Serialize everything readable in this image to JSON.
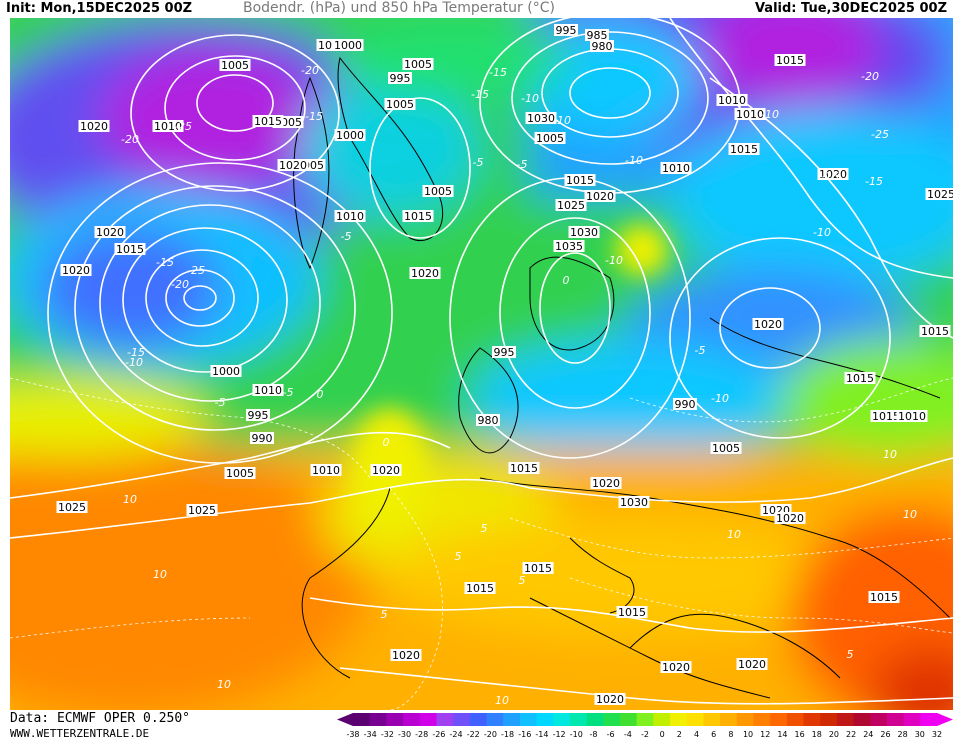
{
  "header": {
    "init": "Init: Mon,15DEC2025 00Z",
    "title": "Bodendr. (hPa) und 850 hPa Temperatur (°C)",
    "valid": "Valid: Tue,30DEC2025 00Z"
  },
  "footer": {
    "data_source": "Data: ECMWF OPER 0.250°",
    "website": "WWW.WETTERZENTRALE.DE"
  },
  "colorbar": {
    "ticks": [
      "-38",
      "-34",
      "-32",
      "-30",
      "-28",
      "-26",
      "-24",
      "-22",
      "-20",
      "-18",
      "-16",
      "-14",
      "-12",
      "-10",
      "-8",
      "-6",
      "-4",
      "-2",
      "0",
      "2",
      "4",
      "6",
      "8",
      "10",
      "12",
      "14",
      "16",
      "18",
      "20",
      "22",
      "24",
      "26",
      "28",
      "30",
      "32"
    ],
    "colors": [
      "#5a0070",
      "#780090",
      "#9800b0",
      "#b800d0",
      "#d000e8",
      "#a040f0",
      "#7050f8",
      "#4060ff",
      "#3080ff",
      "#20a0ff",
      "#10c0ff",
      "#00d8ff",
      "#00e8e0",
      "#00e8b0",
      "#00e080",
      "#20e050",
      "#40e030",
      "#80f020",
      "#c0f000",
      "#f0f000",
      "#ffe000",
      "#ffc800",
      "#ffb000",
      "#ff9800",
      "#ff8000",
      "#ff6800",
      "#f05000",
      "#e03800",
      "#d02800",
      "#c01818",
      "#b00830",
      "#c00060",
      "#d00090",
      "#e000c0",
      "#f000f0"
    ]
  },
  "map": {
    "pressure_labels": [
      "1000",
      "1005",
      "995",
      "1005",
      "1015",
      "1020",
      "1010",
      "1005",
      "1000",
      "1005",
      "1010",
      "1005",
      "1010",
      "1015",
      "1010",
      "1005",
      "995",
      "985",
      "980",
      "1030",
      "1005",
      "1010",
      "1015",
      "1020",
      "1025",
      "1015",
      "1020",
      "1025",
      "1020",
      "1035",
      "1030",
      "1020",
      "1020",
      "1015",
      "1015",
      "995",
      "990",
      "980",
      "1005",
      "1000",
      "1010",
      "995",
      "990",
      "1005",
      "1010",
      "1020",
      "1015",
      "1020",
      "1030",
      "1025",
      "1025",
      "1020",
      "1020",
      "1015",
      "1010",
      "1015",
      "1015",
      "1015",
      "1015",
      "1020",
      "1020",
      "1020",
      "1020",
      "1020",
      "1015",
      "1020",
      "1015",
      "1005",
      "1000"
    ],
    "temp_labels": [
      "-25",
      "-15",
      "-25",
      "-20",
      "-10",
      "-15",
      "-20",
      "-10",
      "-5",
      "-10",
      "-15",
      "-10",
      "-5",
      "-25",
      "-20",
      "-15",
      "-10",
      "-15",
      "-20",
      "-15",
      "-10",
      "-10",
      "-5",
      "-15",
      "-10",
      "-5",
      "0",
      "-5",
      "-5",
      "0",
      "5",
      "5",
      "10",
      "10",
      "10",
      "10",
      "5",
      "10",
      "10",
      "10",
      "0",
      "5",
      "5"
    ]
  }
}
